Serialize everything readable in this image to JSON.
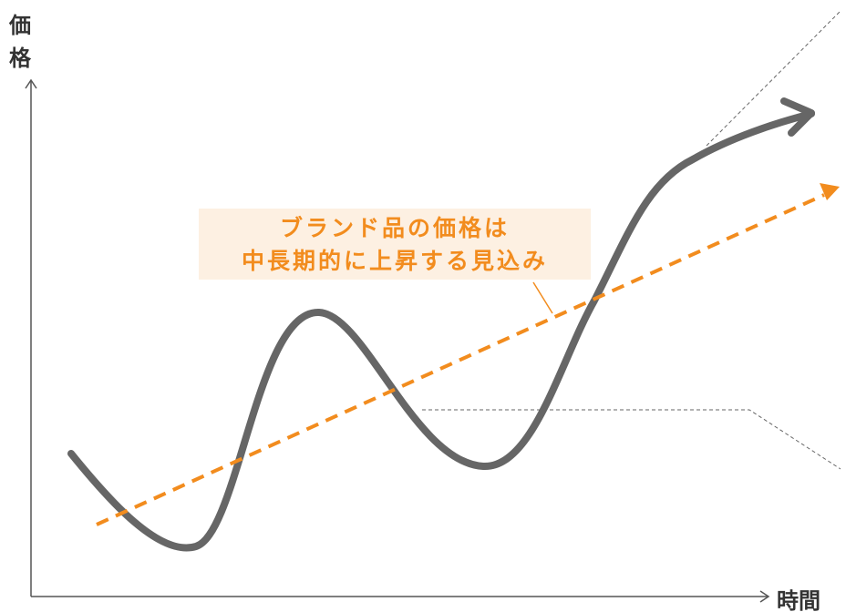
{
  "y_axis": {
    "label_line1": "価",
    "label_line2": "格"
  },
  "x_axis": {
    "label": "時間"
  },
  "callout": {
    "line1": "ブランド品の価格は",
    "line2": "中長期的に上昇する見込み"
  },
  "colors": {
    "axis": "#555555",
    "price_curve": "#666666",
    "trend_line": "#f28c1e",
    "callout_bg": "#fdf0e2",
    "callout_text": "#f28c1e",
    "guide_lines": "#666666"
  },
  "icons": {
    "curve_arrowhead": "chevron-arrowhead",
    "trend_arrowhead": "triangle-arrowhead"
  }
}
